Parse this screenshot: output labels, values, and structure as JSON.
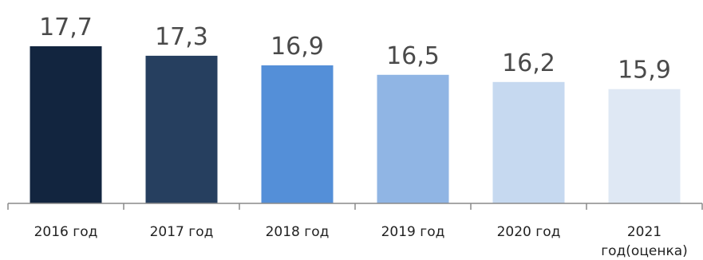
{
  "chart_data": {
    "type": "bar",
    "categories": [
      [
        "2016 год"
      ],
      [
        "2017 год"
      ],
      [
        "2018 год"
      ],
      [
        "2019 год"
      ],
      [
        "2020 год"
      ],
      [
        "2021",
        "год(оценка)"
      ]
    ],
    "values": [
      17.7,
      17.3,
      16.9,
      16.5,
      16.2,
      15.9
    ],
    "value_labels": [
      "17,7",
      "17,3",
      "16,9",
      "16,5",
      "16,2",
      "15,9"
    ],
    "colors": [
      "#12253f",
      "#263f5f",
      "#548fd8",
      "#90b5e4",
      "#c6d9f0",
      "#dfe8f4"
    ],
    "title": "",
    "xlabel": "",
    "ylabel": "",
    "ylim": [
      11.1,
      17.7
    ],
    "grid": false,
    "legend": "none"
  }
}
